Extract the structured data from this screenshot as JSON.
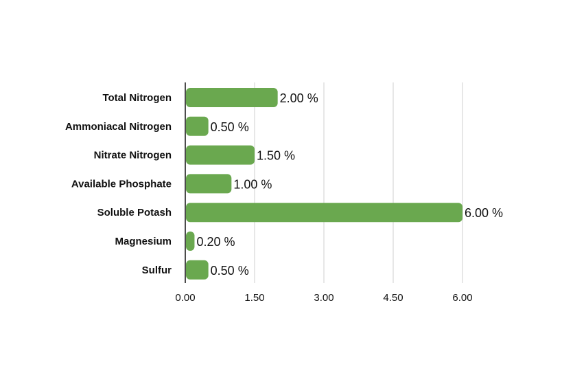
{
  "chart_data": {
    "type": "bar",
    "orientation": "horizontal",
    "title": "",
    "xlabel": "",
    "ylabel": "",
    "categories": [
      "Total Nitrogen",
      "Ammoniacal Nitrogen",
      "Nitrate Nitrogen",
      "Available Phosphate",
      "Soluble Potash",
      "Magnesium",
      "Sulfur"
    ],
    "values": [
      2.0,
      0.5,
      1.5,
      1.0,
      6.0,
      0.2,
      0.5
    ],
    "data_labels": [
      "2.00 %",
      "0.50 %",
      "1.50 %",
      "1.00 %",
      "6.00 %",
      "0.20 %",
      "0.50 %"
    ],
    "xlim": [
      0,
      6
    ],
    "x_ticks": [
      0,
      1.5,
      3,
      4.5,
      6
    ],
    "x_tick_labels": [
      "0.00",
      "1.50",
      "3.00",
      "4.50",
      "6.00"
    ],
    "grid": "vertical",
    "legend": "none",
    "bar_color": "#6aa84f",
    "axis_color": "#111111",
    "grid_color": "#cfcfcf"
  }
}
